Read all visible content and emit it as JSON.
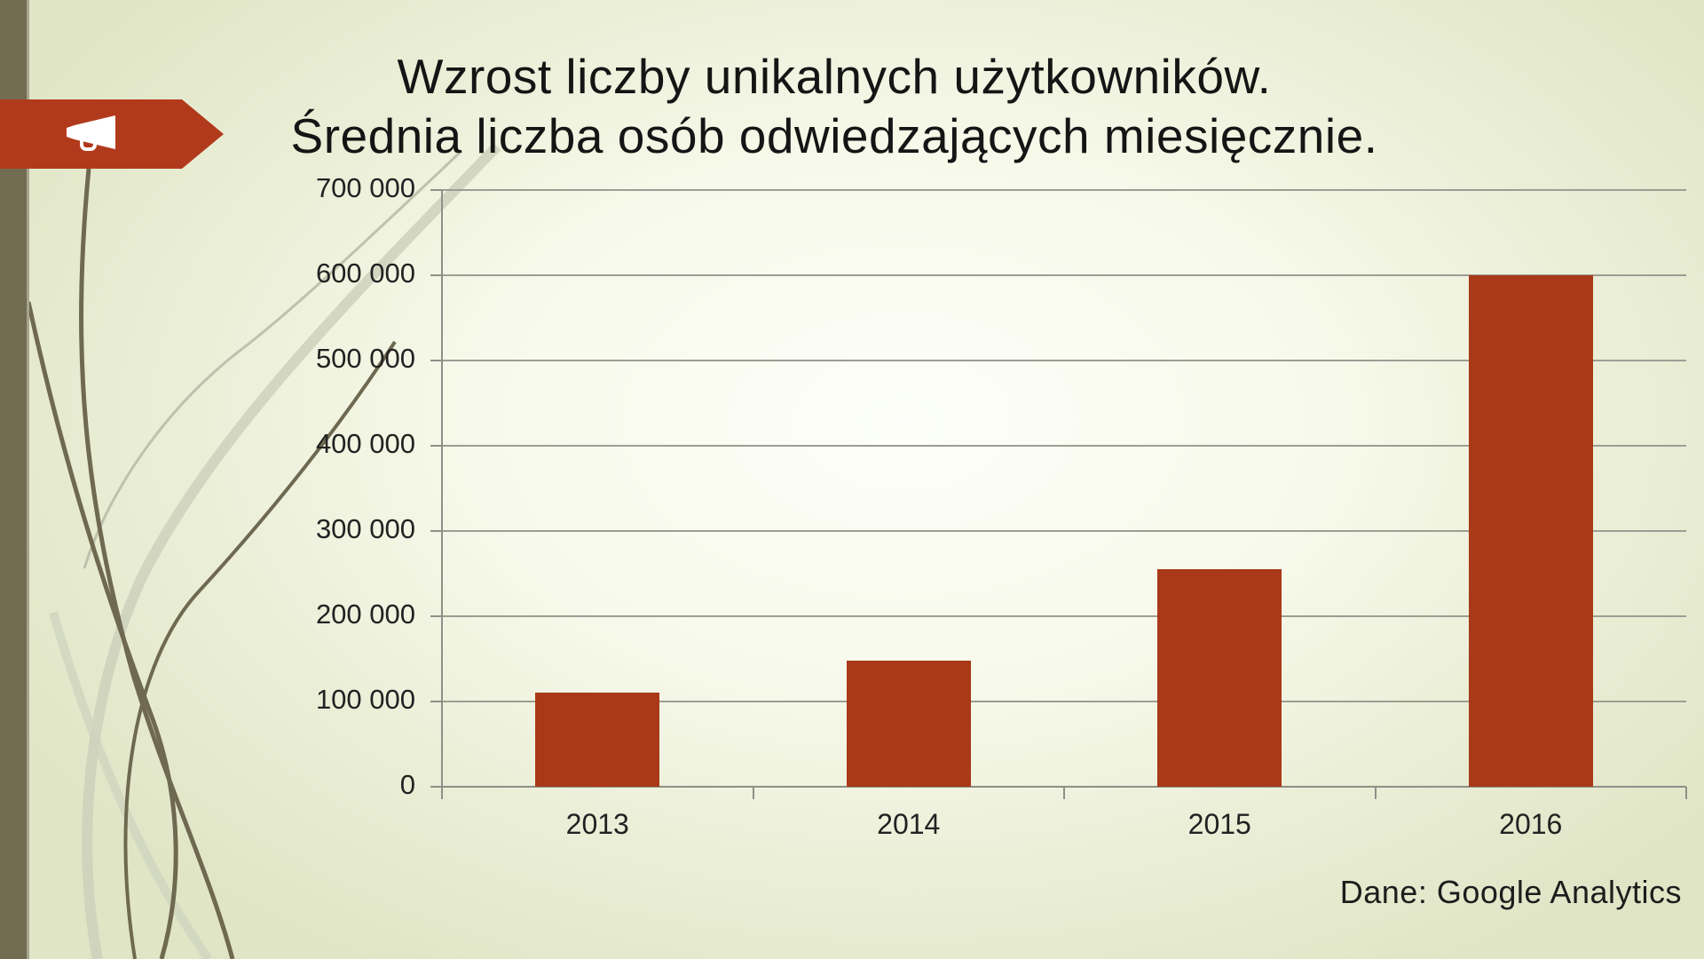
{
  "slide": {
    "title_line1": "Wzrost liczby unikalnych użytkowników.",
    "title_line2": "Średnia liczba osób odwiedzających miesięcznie.",
    "source_note": "Dane: Google Analytics",
    "banner_icon": "megaphone-icon"
  },
  "colors": {
    "bar": "#A93918",
    "banner": "#B23A1C",
    "side_strip": "#726C52",
    "gridline": "#9D9D94",
    "axis": "#8F8F87",
    "background": "#E4E8CD",
    "title_text": "#151515"
  },
  "chart_data": {
    "type": "bar",
    "categories": [
      "2013",
      "2014",
      "2015",
      "2016"
    ],
    "values": [
      110000,
      148000,
      255000,
      600000
    ],
    "title": "Wzrost liczby unikalnych użytkowników. Średnia liczba osób odwiedzających miesięcznie.",
    "xlabel": "",
    "ylabel": "",
    "ylim": [
      0,
      700000
    ],
    "ytick_step": 100000,
    "ytick_labels": [
      "0",
      "100 000",
      "200 000",
      "300 000",
      "400 000",
      "500 000",
      "600 000",
      "700 000"
    ],
    "grid": true,
    "legend": false,
    "source": "Dane: Google Analytics"
  }
}
